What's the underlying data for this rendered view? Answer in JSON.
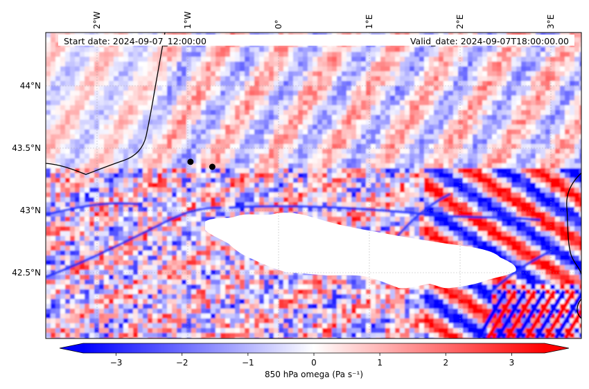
{
  "header": {
    "start_date": "Start date: 2024-09-07_12:00:00",
    "valid_date": "Valid_date: 2024-09-07T18:00:00.00"
  },
  "map": {
    "lon_ticks": [
      {
        "value": -2,
        "label": "2°W"
      },
      {
        "value": -1,
        "label": "1°W"
      },
      {
        "value": 0,
        "label": "0°"
      },
      {
        "value": 1,
        "label": "1°E"
      },
      {
        "value": 2,
        "label": "2°E"
      },
      {
        "value": 3,
        "label": "3°E"
      }
    ],
    "lat_ticks": [
      {
        "value": 44.0,
        "label": "44°N"
      },
      {
        "value": 43.5,
        "label": "43.5°N"
      },
      {
        "value": 43.0,
        "label": "43°N"
      },
      {
        "value": 42.5,
        "label": "42.5°N"
      }
    ],
    "markers": [
      {
        "lon": -0.97,
        "lat": 43.39
      },
      {
        "lon": -0.73,
        "lat": 43.35
      }
    ],
    "gridlines": true,
    "field": "850 hPa omega",
    "masked_region": "high terrain (Pyrenees)"
  },
  "colorbar": {
    "label": "850 hPa omega (Pa s⁻¹)",
    "ticks": [
      {
        "value": -3,
        "label": "−3"
      },
      {
        "value": -2,
        "label": "−2"
      },
      {
        "value": -1,
        "label": "−1"
      },
      {
        "value": 0,
        "label": "0"
      },
      {
        "value": 1,
        "label": "1"
      },
      {
        "value": 2,
        "label": "2"
      },
      {
        "value": 3,
        "label": "3"
      }
    ],
    "range": [
      -3.5,
      3.5
    ],
    "extend": "both",
    "cmap": [
      "#0000ff",
      "#ffffff",
      "#ff0000"
    ]
  }
}
